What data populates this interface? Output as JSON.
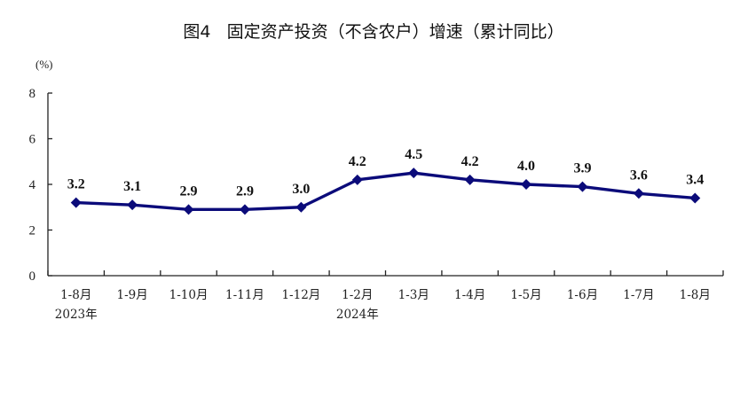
{
  "chart_data": {
    "type": "line",
    "title": "图4   固定资产投资（不含农户）增速（累计同比）",
    "ylabel": "(%)",
    "ylim": [
      0,
      8
    ],
    "yticks": [
      0,
      2,
      4,
      6,
      8
    ],
    "categories": [
      "1-8月",
      "1-9月",
      "1-10月",
      "1-11月",
      "1-12月",
      "1-2月",
      "1-3月",
      "1-4月",
      "1-5月",
      "1-6月",
      "1-7月",
      "1-8月"
    ],
    "year_labels": [
      {
        "index": 0,
        "text": "2023年"
      },
      {
        "index": 5,
        "text": "2024年"
      }
    ],
    "series": [
      {
        "values": [
          3.2,
          3.1,
          2.9,
          2.9,
          3.0,
          4.2,
          4.5,
          4.2,
          4.0,
          3.9,
          3.6,
          3.4
        ],
        "labels": [
          "3.2",
          "3.1",
          "2.9",
          "2.9",
          "3.0",
          "4.2",
          "4.5",
          "4.2",
          "4.0",
          "3.9",
          "3.6",
          "3.4"
        ]
      }
    ],
    "grid": false,
    "colors": {
      "line": "#0b0b7a",
      "text": "#111111"
    }
  }
}
